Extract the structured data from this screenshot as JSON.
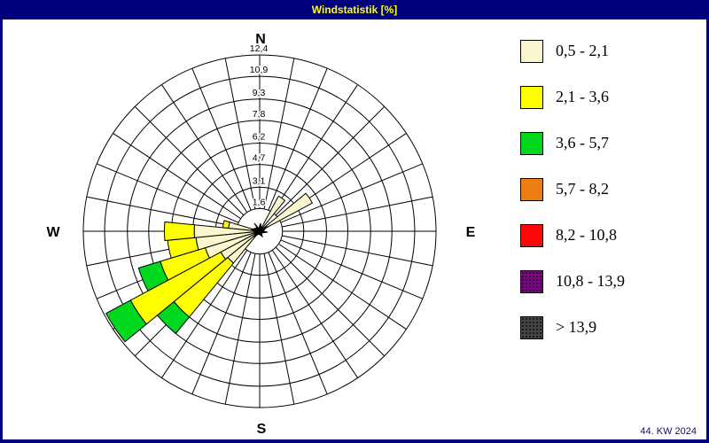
{
  "window": {
    "title": "Windstatistik [%]"
  },
  "footer": {
    "week_label": "44. KW 2024"
  },
  "compass": {
    "n": "N",
    "e": "E",
    "s": "S",
    "w": "W"
  },
  "legend": {
    "items": [
      {
        "label": "0,5 - 2,1",
        "color": "#FAF7CE",
        "textured": false
      },
      {
        "label": "2,1 - 3,6",
        "color": "#FFFF00",
        "textured": false
      },
      {
        "label": "3,6 - 5,7",
        "color": "#00D820",
        "textured": false
      },
      {
        "label": "5,7 - 8,2",
        "color": "#EE7D16",
        "textured": false
      },
      {
        "label": "8,2 - 10,8",
        "color": "#FB0909",
        "textured": false
      },
      {
        "label": "10,8 - 13,9",
        "color": "#7B0882",
        "textured": true
      },
      {
        "label": "> 13,9",
        "color": "#454545",
        "textured": true
      }
    ]
  },
  "chart_data": {
    "type": "wind-rose",
    "title": "Windstatistik [%]",
    "units": "%",
    "axis_max": 12.4,
    "ring_values": [
      1.6,
      3.1,
      4.7,
      6.2,
      7.8,
      9.3,
      10.9,
      12.4
    ],
    "ring_labels": [
      "1,6",
      "3,1",
      "4,7",
      "6,2",
      "7,8",
      "9,3",
      "10,9",
      "12,4"
    ],
    "sector_count": 32,
    "sector_width_deg": 11.25,
    "legend_position": "right",
    "speed_classes": [
      {
        "label": "0,5 - 2,1",
        "color": "#FAF7CE"
      },
      {
        "label": "2,1 - 3,6",
        "color": "#FFFF00"
      },
      {
        "label": "3,6 - 5,7",
        "color": "#00D820"
      },
      {
        "label": "5,7 - 8,2",
        "color": "#EE7D16"
      },
      {
        "label": "8,2 - 10,8",
        "color": "#FB0909"
      },
      {
        "label": "10,8 - 13,9",
        "color": "#7B0882"
      },
      {
        "label": "> 13,9",
        "color": "#454545"
      }
    ],
    "petals": [
      {
        "dir_deg": 33.75,
        "segments": [
          {
            "class": "0,5 - 2,1",
            "from": 0,
            "to": 2.8
          }
        ]
      },
      {
        "dir_deg": 56.25,
        "segments": [
          {
            "class": "0,5 - 2,1",
            "from": 0,
            "to": 4.2
          }
        ]
      },
      {
        "dir_deg": 225,
        "segments": [
          {
            "class": "0,5 - 2,1",
            "from": 0,
            "to": 2.9
          },
          {
            "class": "2,1 - 3,6",
            "from": 2.9,
            "to": 7.8
          },
          {
            "class": "3,6 - 5,7",
            "from": 7.8,
            "to": 9.3
          }
        ]
      },
      {
        "dir_deg": 236.25,
        "segments": [
          {
            "class": "0,5 - 2,1",
            "from": 0,
            "to": 3.1
          },
          {
            "class": "2,1 - 3,6",
            "from": 3.1,
            "to": 10.3
          },
          {
            "class": "3,6 - 5,7",
            "from": 10.3,
            "to": 12.25
          }
        ]
      },
      {
        "dir_deg": 247.5,
        "segments": [
          {
            "class": "0,5 - 2,1",
            "from": 0,
            "to": 4.0
          },
          {
            "class": "2,1 - 3,6",
            "from": 4.0,
            "to": 7.3
          },
          {
            "class": "3,6 - 5,7",
            "from": 7.3,
            "to": 8.9
          }
        ]
      },
      {
        "dir_deg": 258.75,
        "segments": [
          {
            "class": "0,5 - 2,1",
            "from": 0,
            "to": 4.5
          },
          {
            "class": "2,1 - 3,6",
            "from": 4.5,
            "to": 6.5
          }
        ]
      },
      {
        "dir_deg": 270,
        "segments": [
          {
            "class": "0,5 - 2,1",
            "from": 0,
            "to": 4.6
          },
          {
            "class": "2,1 - 3,6",
            "from": 4.6,
            "to": 6.7
          }
        ]
      },
      {
        "dir_deg": 281.25,
        "segments": [
          {
            "class": "0,5 - 2,1",
            "from": 0,
            "to": 2.2
          },
          {
            "class": "2,1 - 3,6",
            "from": 2.2,
            "to": 2.6
          }
        ]
      }
    ]
  }
}
